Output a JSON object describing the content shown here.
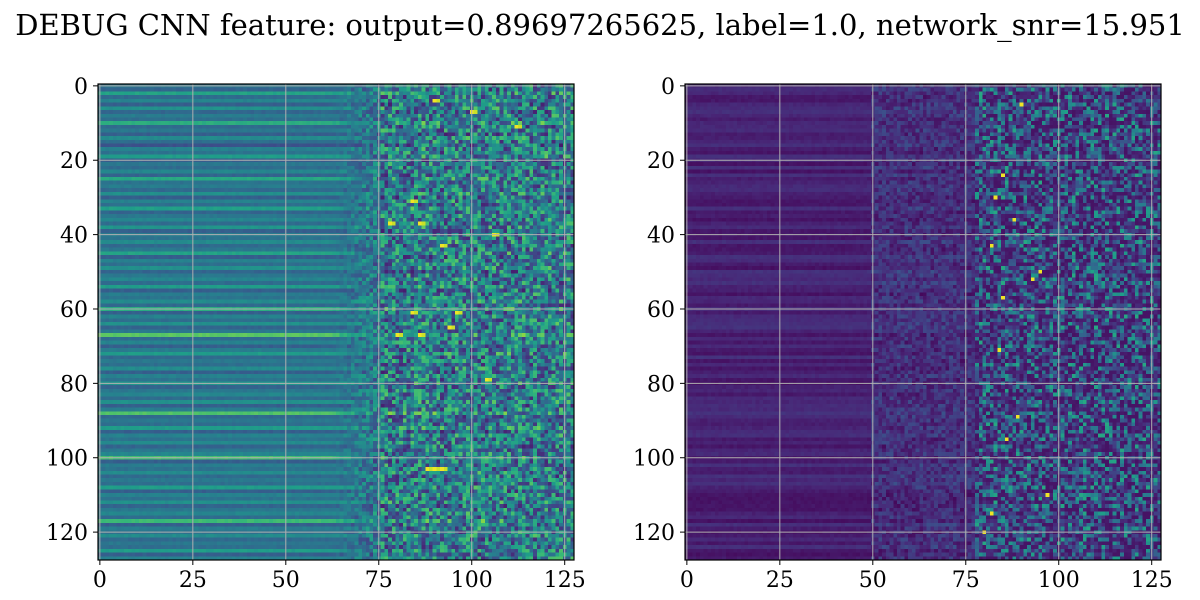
{
  "title": "DEBUG CNN feature: output=0.89697265625, label=1.0, network_snr=15.951",
  "chart_data": [
    {
      "type": "heatmap",
      "colormap": "viridis",
      "grid": true,
      "grid_color": "#b0b0b0",
      "xlim": [
        0,
        127
      ],
      "ylim": [
        127,
        0
      ],
      "x_ticks": [
        0,
        25,
        50,
        75,
        100,
        125
      ],
      "y_ticks": [
        0,
        20,
        40,
        60,
        80,
        100,
        120
      ],
      "x_tick_labels": [
        "0",
        "25",
        "50",
        "75",
        "100",
        "125"
      ],
      "y_tick_labels": [
        "0",
        "20",
        "40",
        "60",
        "80",
        "100",
        "120"
      ],
      "matrix_size": [
        128,
        128
      ],
      "row_intensity_pattern": [
        0.4,
        0.32,
        0.58,
        0.35,
        0.45,
        0.3,
        0.5,
        0.33,
        0.42,
        0.36,
        0.62,
        0.34,
        0.4,
        0.3,
        0.48,
        0.36,
        0.25,
        0.44,
        0.38,
        0.55,
        0.3,
        0.4,
        0.35,
        0.46,
        0.32,
        0.6,
        0.38,
        0.42,
        0.34,
        0.5,
        0.3,
        0.44,
        0.36,
        0.56,
        0.32,
        0.4,
        0.46,
        0.35,
        0.52,
        0.3,
        0.42,
        0.38,
        0.48,
        0.34,
        0.4,
        0.58,
        0.3,
        0.44,
        0.36,
        0.5,
        0.32,
        0.4,
        0.46,
        0.35,
        0.55,
        0.3,
        0.42,
        0.38,
        0.48,
        0.34,
        0.62,
        0.3,
        0.44,
        0.36,
        0.5,
        0.32,
        0.4,
        0.74,
        0.35,
        0.45,
        0.3,
        0.42,
        0.55,
        0.34,
        0.4,
        0.36,
        0.48,
        0.3,
        0.44,
        0.38,
        0.52,
        0.32,
        0.4,
        0.46,
        0.35,
        0.5,
        0.3,
        0.42,
        0.72,
        0.34,
        0.4,
        0.36,
        0.55,
        0.3,
        0.44,
        0.38,
        0.48,
        0.32,
        0.4,
        0.46,
        0.7,
        0.3,
        0.42,
        0.38,
        0.48,
        0.34,
        0.4,
        0.36,
        0.55,
        0.3,
        0.44,
        0.38,
        0.5,
        0.32,
        0.4,
        0.46,
        0.35,
        0.68,
        0.3,
        0.42,
        0.38,
        0.48,
        0.34,
        0.4,
        0.36,
        0.55,
        0.3,
        0.44
      ],
      "hot_pixels": [
        [
          88,
          103
        ],
        [
          90,
          103
        ],
        [
          92,
          103
        ],
        [
          86,
          67
        ],
        [
          80,
          67
        ],
        [
          94,
          65
        ],
        [
          86,
          37
        ],
        [
          78,
          37
        ],
        [
          84,
          31
        ],
        [
          106,
          40
        ],
        [
          92,
          43
        ],
        [
          90,
          4
        ],
        [
          100,
          7
        ],
        [
          112,
          11
        ],
        [
          84,
          61
        ],
        [
          96,
          61
        ],
        [
          104,
          79
        ]
      ]
    },
    {
      "type": "heatmap",
      "colormap": "viridis",
      "grid": true,
      "grid_color": "#b0b0b0",
      "xlim": [
        0,
        127
      ],
      "ylim": [
        127,
        0
      ],
      "x_ticks": [
        0,
        25,
        50,
        75,
        100,
        125
      ],
      "y_ticks": [
        0,
        20,
        40,
        60,
        80,
        100,
        120
      ],
      "x_tick_labels": [
        "0",
        "25",
        "50",
        "75",
        "100",
        "125"
      ],
      "y_tick_labels": [
        "0",
        "20",
        "40",
        "60",
        "80",
        "100",
        "120"
      ],
      "matrix_size": [
        128,
        128
      ],
      "hot_pixels": [
        [
          88,
          36
        ],
        [
          82,
          43
        ],
        [
          85,
          24
        ],
        [
          95,
          50
        ],
        [
          83,
          30
        ],
        [
          84,
          71
        ],
        [
          86,
          95
        ],
        [
          82,
          115
        ],
        [
          97,
          110
        ],
        [
          90,
          5
        ],
        [
          85,
          57
        ],
        [
          80,
          120
        ],
        [
          93,
          52
        ],
        [
          89,
          89
        ]
      ]
    }
  ]
}
